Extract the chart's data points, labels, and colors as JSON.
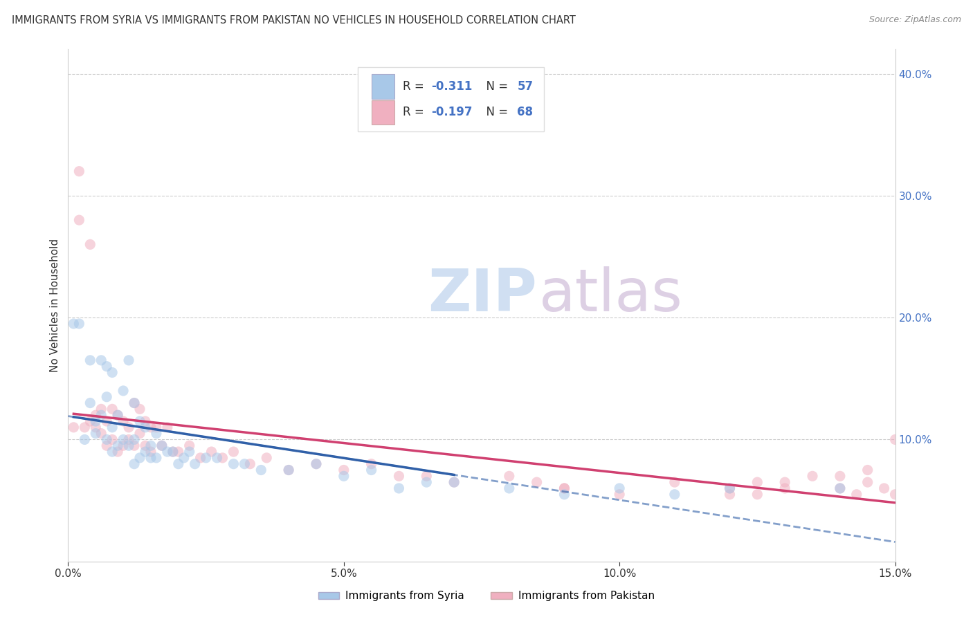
{
  "title": "IMMIGRANTS FROM SYRIA VS IMMIGRANTS FROM PAKISTAN NO VEHICLES IN HOUSEHOLD CORRELATION CHART",
  "source": "Source: ZipAtlas.com",
  "ylabel": "No Vehicles in Household",
  "xmin": 0.0,
  "xmax": 0.15,
  "ymin": 0.0,
  "ymax": 0.42,
  "right_ytick_vals": [
    0.1,
    0.2,
    0.3,
    0.4
  ],
  "right_ytick_labels": [
    "10.0%",
    "20.0%",
    "30.0%",
    "40.0%"
  ],
  "grid_ytick_vals": [
    0.1,
    0.2,
    0.3,
    0.4
  ],
  "xtick_labels": [
    "0.0%",
    "5.0%",
    "10.0%",
    "15.0%"
  ],
  "xtick_vals": [
    0.0,
    0.05,
    0.1,
    0.15
  ],
  "syria_color": "#a8c8e8",
  "syria_edge_color": "#5090c8",
  "syria_line_color": "#3060a8",
  "pakistan_color": "#f0b0c0",
  "pakistan_edge_color": "#e07090",
  "pakistan_line_color": "#d04070",
  "syria_R": -0.311,
  "syria_N": 57,
  "pakistan_R": -0.197,
  "pakistan_N": 68,
  "syria_scatter_x": [
    0.001,
    0.002,
    0.003,
    0.004,
    0.004,
    0.005,
    0.005,
    0.006,
    0.006,
    0.007,
    0.007,
    0.007,
    0.008,
    0.008,
    0.008,
    0.009,
    0.009,
    0.01,
    0.01,
    0.011,
    0.011,
    0.012,
    0.012,
    0.012,
    0.013,
    0.013,
    0.014,
    0.014,
    0.015,
    0.015,
    0.016,
    0.016,
    0.017,
    0.018,
    0.019,
    0.02,
    0.021,
    0.022,
    0.023,
    0.025,
    0.027,
    0.03,
    0.032,
    0.035,
    0.04,
    0.045,
    0.05,
    0.055,
    0.06,
    0.065,
    0.07,
    0.08,
    0.09,
    0.1,
    0.11,
    0.12,
    0.14
  ],
  "syria_scatter_y": [
    0.195,
    0.195,
    0.1,
    0.13,
    0.165,
    0.105,
    0.115,
    0.12,
    0.165,
    0.1,
    0.135,
    0.16,
    0.09,
    0.11,
    0.155,
    0.095,
    0.12,
    0.1,
    0.14,
    0.095,
    0.165,
    0.08,
    0.1,
    0.13,
    0.085,
    0.115,
    0.09,
    0.11,
    0.085,
    0.095,
    0.085,
    0.105,
    0.095,
    0.09,
    0.09,
    0.08,
    0.085,
    0.09,
    0.08,
    0.085,
    0.085,
    0.08,
    0.08,
    0.075,
    0.075,
    0.08,
    0.07,
    0.075,
    0.06,
    0.065,
    0.065,
    0.06,
    0.055,
    0.06,
    0.055,
    0.06,
    0.06
  ],
  "pakistan_scatter_x": [
    0.001,
    0.002,
    0.002,
    0.003,
    0.004,
    0.004,
    0.005,
    0.005,
    0.006,
    0.006,
    0.007,
    0.007,
    0.008,
    0.008,
    0.009,
    0.009,
    0.01,
    0.01,
    0.011,
    0.011,
    0.012,
    0.012,
    0.013,
    0.013,
    0.014,
    0.014,
    0.015,
    0.015,
    0.016,
    0.017,
    0.018,
    0.019,
    0.02,
    0.022,
    0.024,
    0.026,
    0.028,
    0.03,
    0.033,
    0.036,
    0.04,
    0.045,
    0.05,
    0.055,
    0.06,
    0.065,
    0.07,
    0.08,
    0.085,
    0.09,
    0.1,
    0.11,
    0.12,
    0.125,
    0.13,
    0.135,
    0.14,
    0.143,
    0.145,
    0.148,
    0.15,
    0.15,
    0.13,
    0.12,
    0.14,
    0.145,
    0.09,
    0.125
  ],
  "pakistan_scatter_y": [
    0.11,
    0.32,
    0.28,
    0.11,
    0.115,
    0.26,
    0.12,
    0.11,
    0.125,
    0.105,
    0.115,
    0.095,
    0.125,
    0.1,
    0.12,
    0.09,
    0.115,
    0.095,
    0.11,
    0.1,
    0.13,
    0.095,
    0.125,
    0.105,
    0.115,
    0.095,
    0.11,
    0.09,
    0.11,
    0.095,
    0.11,
    0.09,
    0.09,
    0.095,
    0.085,
    0.09,
    0.085,
    0.09,
    0.08,
    0.085,
    0.075,
    0.08,
    0.075,
    0.08,
    0.07,
    0.07,
    0.065,
    0.07,
    0.065,
    0.06,
    0.055,
    0.065,
    0.06,
    0.055,
    0.06,
    0.07,
    0.06,
    0.055,
    0.065,
    0.06,
    0.055,
    0.1,
    0.065,
    0.055,
    0.07,
    0.075,
    0.06,
    0.065
  ],
  "watermark_zip": "ZIP",
  "watermark_atlas": "atlas",
  "background_color": "#ffffff",
  "legend_label_syria": "Immigrants from Syria",
  "legend_label_pakistan": "Immigrants from Pakistan",
  "legend_text_color": "#4472c4",
  "marker_size": 120,
  "marker_alpha": 0.55
}
